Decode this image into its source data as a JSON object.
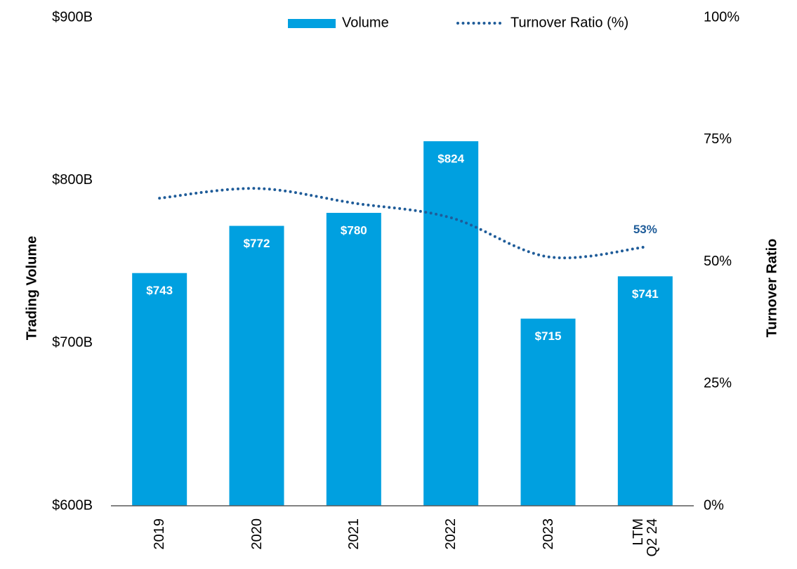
{
  "chart_data": {
    "type": "bar",
    "categories": [
      "2019",
      "2020",
      "2021",
      "2022",
      "2023",
      "LTM\nQ2 24"
    ],
    "series": [
      {
        "name": "Volume",
        "color": "#00a0e0",
        "values": [
          743,
          772,
          780,
          824,
          715,
          741
        ],
        "value_labels": [
          "$743",
          "$772",
          "$780",
          "$824",
          "$715",
          "$741"
        ]
      },
      {
        "name": "Turnover Ratio (%)",
        "type": "line",
        "axis": "y2",
        "color": "#1f5c99",
        "values": [
          63,
          65,
          62,
          59,
          51,
          53
        ],
        "value_labels": [
          null,
          null,
          null,
          null,
          null,
          "53%"
        ]
      }
    ],
    "ylabel": "Trading Volume",
    "y2label": "Turnover Ratio",
    "ylim": [
      600,
      900
    ],
    "yticks": [
      {
        "value": 600,
        "label": "$600B"
      },
      {
        "value": 700,
        "label": "$700B"
      },
      {
        "value": 800,
        "label": "$800B"
      },
      {
        "value": 900,
        "label": "$900B"
      }
    ],
    "y2lim": [
      0,
      100
    ],
    "y2ticks": [
      {
        "value": 0,
        "label": "0%"
      },
      {
        "value": 25,
        "label": "25%"
      },
      {
        "value": 50,
        "label": "50%"
      },
      {
        "value": 75,
        "label": "75%"
      },
      {
        "value": 100,
        "label": "100%"
      }
    ],
    "legend": "top"
  }
}
